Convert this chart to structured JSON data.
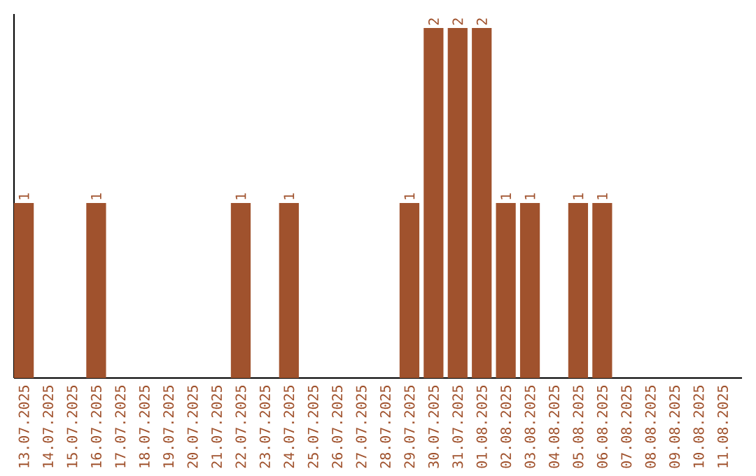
{
  "chart_data": {
    "type": "bar",
    "categories": [
      "13.07.2025",
      "14.07.2025",
      "15.07.2025",
      "16.07.2025",
      "17.07.2025",
      "18.07.2025",
      "19.07.2025",
      "20.07.2025",
      "21.07.2025",
      "22.07.2025",
      "23.07.2025",
      "24.07.2025",
      "25.07.2025",
      "26.07.2025",
      "27.07.2025",
      "28.07.2025",
      "29.07.2025",
      "30.07.2025",
      "31.07.2025",
      "01.08.2025",
      "02.08.2025",
      "03.08.2025",
      "04.08.2025",
      "05.08.2025",
      "06.08.2025",
      "07.08.2025",
      "08.08.2025",
      "09.08.2025",
      "10.08.2025",
      "11.08.2025"
    ],
    "values": [
      1,
      0,
      0,
      1,
      0,
      0,
      0,
      0,
      0,
      1,
      0,
      1,
      0,
      0,
      0,
      0,
      1,
      2,
      2,
      2,
      1,
      1,
      0,
      1,
      1,
      0,
      0,
      0,
      0,
      0
    ],
    "value_labels": [
      "1",
      null,
      null,
      "1",
      null,
      null,
      null,
      null,
      null,
      "1",
      null,
      "1",
      null,
      null,
      null,
      null,
      "1",
      "2",
      "2",
      "2",
      "1",
      "1",
      null,
      "1",
      "1",
      null,
      null,
      null,
      null,
      null
    ],
    "color": "#a0522d",
    "ylim": [
      0,
      2.08
    ],
    "tick_labels": "x",
    "grid": false
  }
}
